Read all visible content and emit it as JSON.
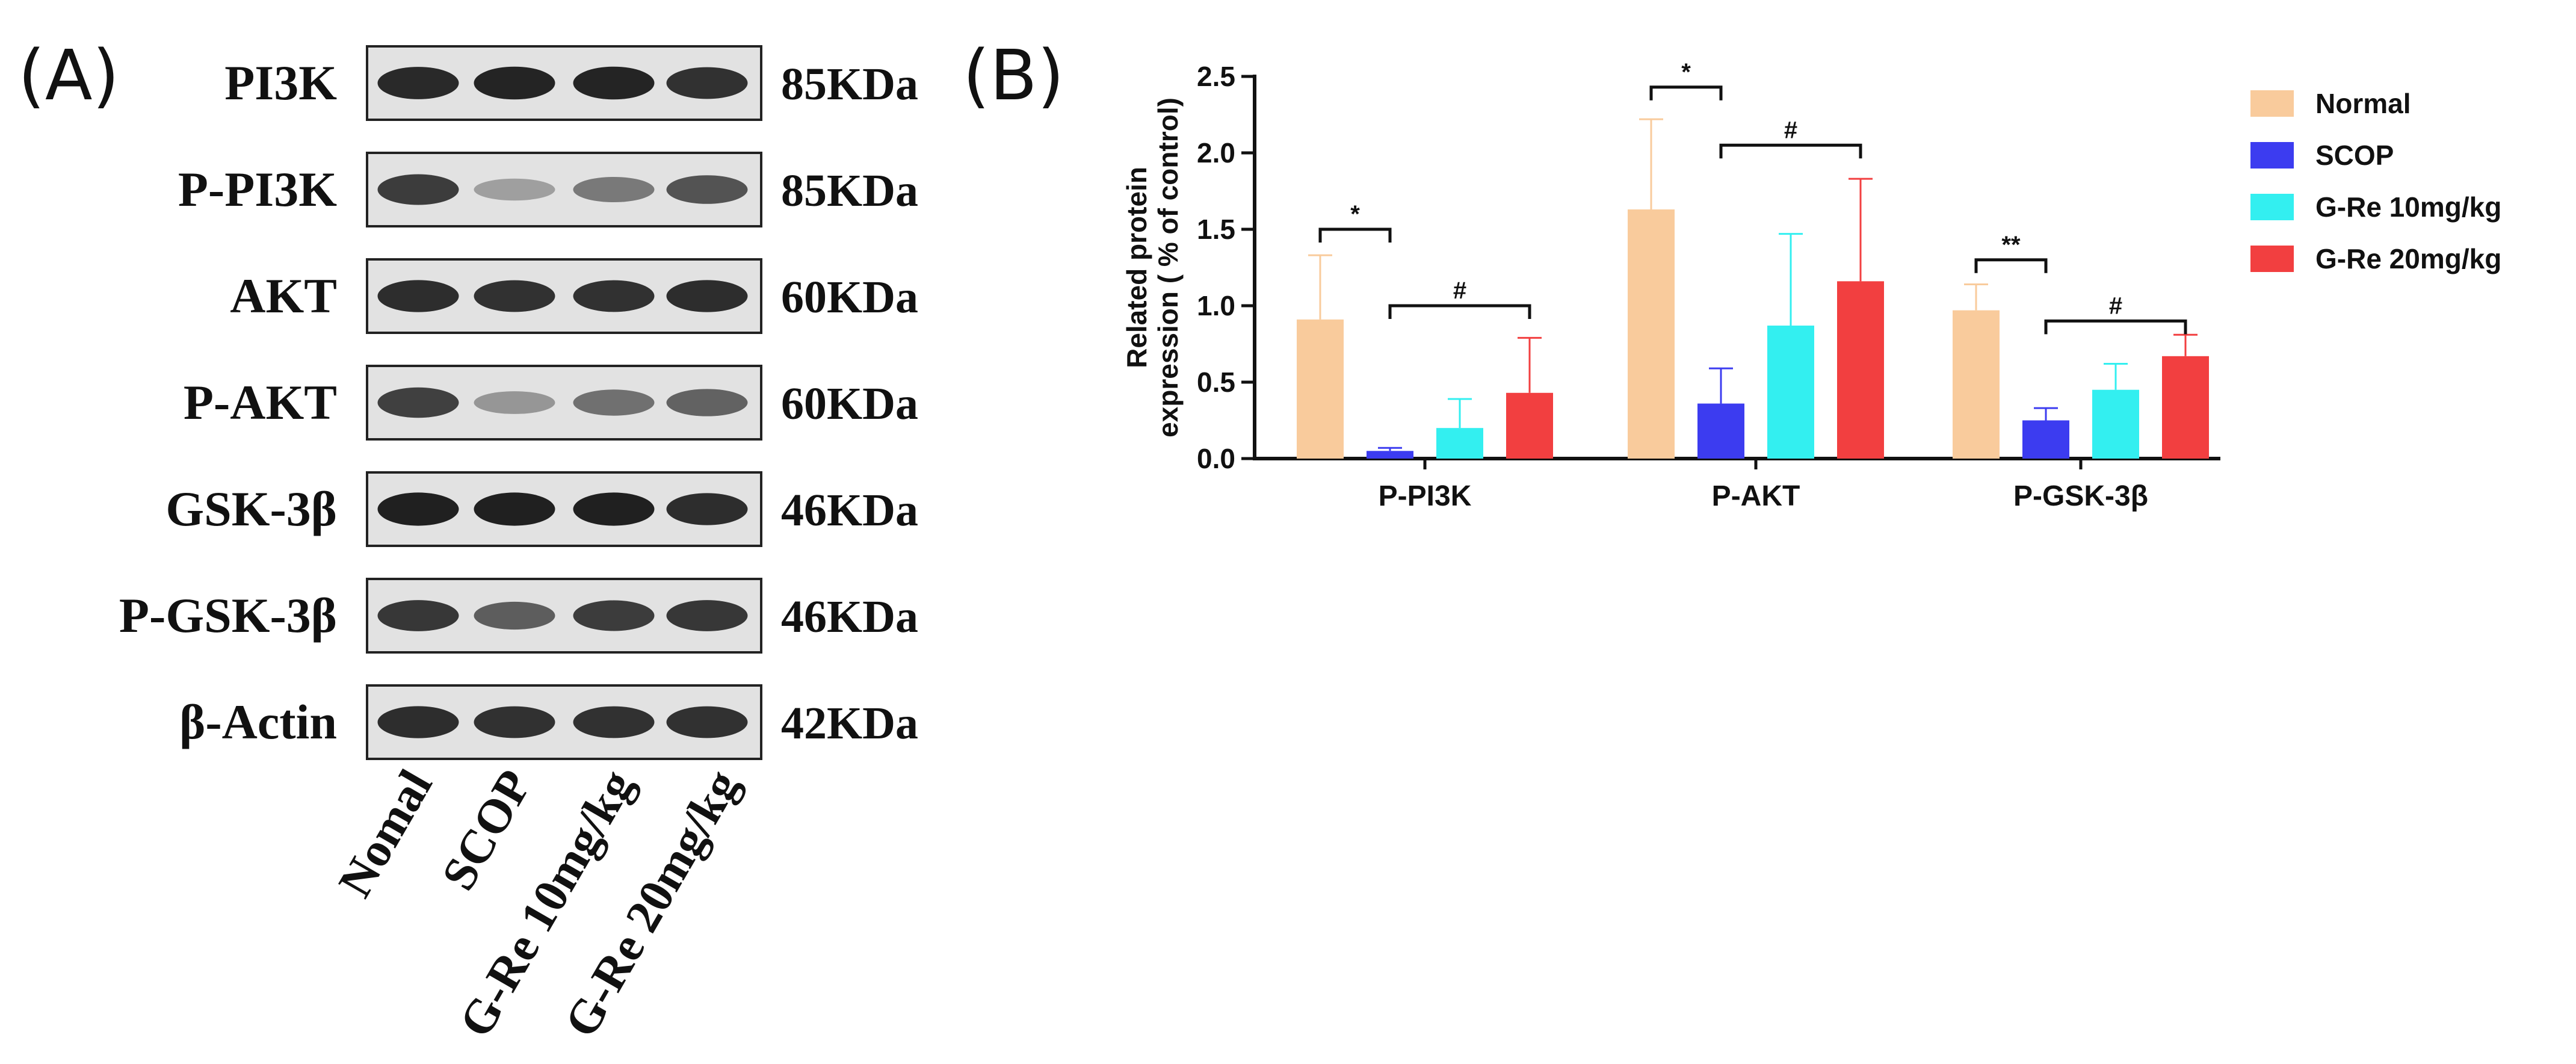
{
  "panel_a": {
    "label": "(A)",
    "rows": [
      {
        "name": "PI3K",
        "kda": "85KDa",
        "bands": [
          0.92,
          0.95,
          0.95,
          0.88
        ]
      },
      {
        "name": "P-PI3K",
        "kda": "85KDa",
        "bands": [
          0.82,
          0.3,
          0.5,
          0.7
        ]
      },
      {
        "name": "AKT",
        "kda": "60KDa",
        "bands": [
          0.9,
          0.88,
          0.88,
          0.9
        ]
      },
      {
        "name": "P-AKT",
        "kda": "60KDa",
        "bands": [
          0.8,
          0.35,
          0.55,
          0.62
        ]
      },
      {
        "name": "GSK-3β",
        "kda": "46KDa",
        "bands": [
          0.97,
          0.97,
          0.97,
          0.9
        ]
      },
      {
        "name": "P-GSK-3β",
        "kda": "46KDa",
        "bands": [
          0.85,
          0.65,
          0.82,
          0.85
        ]
      },
      {
        "name": "β-Actin",
        "kda": "42KDa",
        "bands": [
          0.9,
          0.88,
          0.88,
          0.88
        ]
      }
    ],
    "lanes": [
      "Nomal",
      "SCOP",
      "G-Re 10mg/kg",
      "G-Re 20mg/kg"
    ]
  },
  "panel_b": {
    "label": "(B)"
  },
  "colors": {
    "Normal": "#F9CB9C",
    "SCOP": "#3C3CF0",
    "G-Re 10mg/kg": "#33EFF0",
    "G-Re 20mg/kg": "#F23F40"
  },
  "chart_data": {
    "type": "bar",
    "title": "",
    "xlabel": "",
    "ylabel": [
      "Related protein",
      "expression ( % of control)"
    ],
    "ylim": [
      0,
      2.5
    ],
    "yticks": [
      "0.0",
      "0.5",
      "1.0",
      "1.5",
      "2.0",
      "2.5"
    ],
    "categories": [
      "P-PI3K",
      "P-AKT",
      "P-GSK-3β"
    ],
    "series": [
      {
        "name": "Normal",
        "values": [
          0.91,
          1.63,
          0.97
        ],
        "errors": [
          0.42,
          0.59,
          0.17
        ]
      },
      {
        "name": "SCOP",
        "values": [
          0.05,
          0.36,
          0.25
        ],
        "errors": [
          0.02,
          0.23,
          0.08
        ]
      },
      {
        "name": "G-Re 10mg/kg",
        "values": [
          0.2,
          0.87,
          0.45
        ],
        "errors": [
          0.19,
          0.6,
          0.17
        ]
      },
      {
        "name": "G-Re 20mg/kg",
        "values": [
          0.43,
          1.16,
          0.67
        ],
        "errors": [
          0.36,
          0.67,
          0.14
        ]
      }
    ],
    "significance": [
      {
        "category": 0,
        "from": 0,
        "to": 1,
        "label": "*",
        "level": 1.5
      },
      {
        "category": 0,
        "from": 1,
        "to": 3,
        "label": "#",
        "level": 1.0
      },
      {
        "category": 1,
        "from": 0,
        "to": 1,
        "label": "*",
        "level": 2.43
      },
      {
        "category": 1,
        "from": 1,
        "to": 3,
        "label": "#",
        "level": 2.05
      },
      {
        "category": 2,
        "from": 0,
        "to": 1,
        "label": "**",
        "level": 1.3
      },
      {
        "category": 2,
        "from": 1,
        "to": 3,
        "label": "#",
        "level": 0.9
      }
    ],
    "legend_position": "top-right"
  }
}
